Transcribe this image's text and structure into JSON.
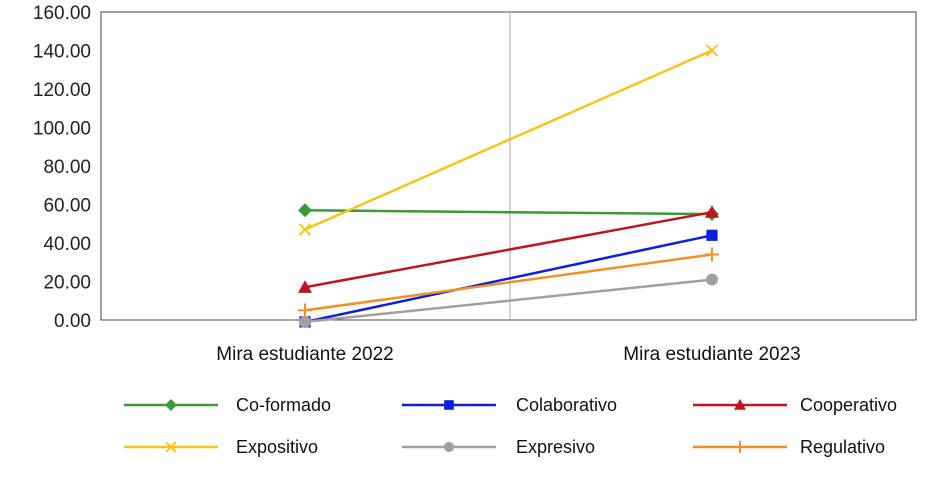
{
  "chart_data": {
    "type": "line",
    "title": "",
    "xlabel": "",
    "ylabel": "",
    "categories": [
      "Mira estudiante 2022",
      "Mira estudiante 2023"
    ],
    "ylim": [
      0,
      160
    ],
    "yticks": [
      "0.00",
      "20.00",
      "40.00",
      "60.00",
      "80.00",
      "100.00",
      "120.00",
      "140.00",
      "160.00"
    ],
    "grid": false,
    "legend_position": "bottom",
    "series": [
      {
        "name": "Co-formado",
        "values": [
          57,
          55
        ],
        "color": "#3a9a35",
        "marker": "diamond"
      },
      {
        "name": "Colaborativo",
        "values": [
          -1,
          44
        ],
        "color": "#0a1fe0",
        "marker": "square"
      },
      {
        "name": "Cooperativo",
        "values": [
          17,
          56
        ],
        "color": "#c0161b",
        "marker": "triangle"
      },
      {
        "name": "Expositivo",
        "values": [
          47,
          140
        ],
        "color": "#f5c518",
        "marker": "x"
      },
      {
        "name": "Expresivo",
        "values": [
          -1,
          21
        ],
        "color": "#a0a0a0",
        "marker": "circle"
      },
      {
        "name": "Regulativo",
        "values": [
          5,
          34
        ],
        "color": "#f39020",
        "marker": "plus"
      }
    ]
  }
}
